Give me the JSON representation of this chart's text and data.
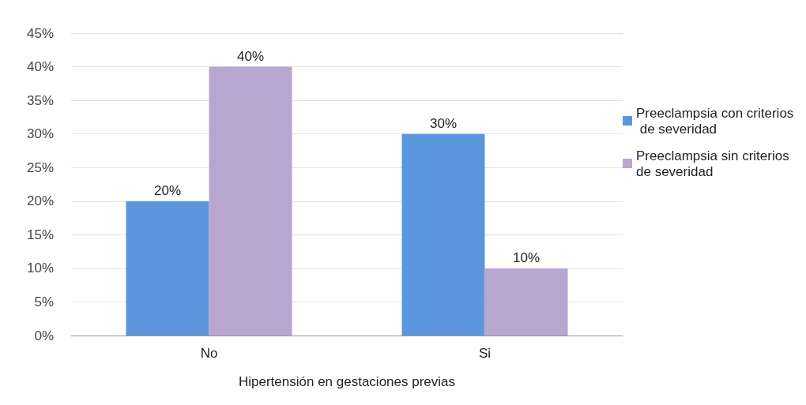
{
  "chart_data": {
    "type": "bar",
    "xlabel": "Hipertensión en gestaciones previas",
    "categories": [
      "No",
      "Si"
    ],
    "series": [
      {
        "name": "Preeclampsia con criterios de severidad",
        "color": "#5b96dd",
        "values": [
          20,
          30
        ],
        "value_labels": [
          "20%",
          "30%"
        ]
      },
      {
        "name": "Preeclampsia sin criterios de severidad",
        "color": "#b7a6d0",
        "values": [
          40,
          10
        ],
        "value_labels": [
          "40%",
          "10%"
        ]
      }
    ],
    "ylim": [
      0,
      45
    ],
    "yticks": [
      {
        "value": 0,
        "label": "0%"
      },
      {
        "value": 5,
        "label": "5%"
      },
      {
        "value": 10,
        "label": "10%"
      },
      {
        "value": 15,
        "label": "15%"
      },
      {
        "value": 20,
        "label": "20%"
      },
      {
        "value": 25,
        "label": "25%"
      },
      {
        "value": 30,
        "label": "30%"
      },
      {
        "value": 35,
        "label": "35%"
      },
      {
        "value": 40,
        "label": "40%"
      },
      {
        "value": 45,
        "label": "45%"
      }
    ],
    "grid": "y",
    "legend": "right"
  }
}
